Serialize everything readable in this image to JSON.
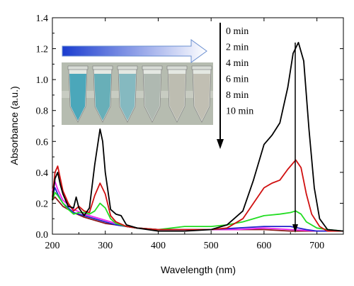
{
  "chart_data": {
    "type": "line",
    "xlabel": "Wavelength (nm)",
    "ylabel": "Absorbance (a.u.)",
    "xlim": [
      200,
      750
    ],
    "ylim": [
      0,
      1.4
    ],
    "xticks": [
      "200",
      "300",
      "400",
      "500",
      "600",
      "700"
    ],
    "yticks": [
      "0.0",
      "0.2",
      "0.4",
      "0.6",
      "0.8",
      "1.0",
      "1.2",
      "1.4"
    ],
    "time_labels": [
      "0 min",
      "2 min",
      "4 min",
      "6 min",
      "8 min",
      "10 min"
    ],
    "grid": false,
    "series": [
      {
        "label": "0 min",
        "color": "#000000",
        "points": [
          [
            200,
            0.22
          ],
          [
            205,
            0.36
          ],
          [
            210,
            0.4
          ],
          [
            215,
            0.32
          ],
          [
            220,
            0.26
          ],
          [
            230,
            0.18
          ],
          [
            240,
            0.17
          ],
          [
            245,
            0.24
          ],
          [
            250,
            0.17
          ],
          [
            260,
            0.12
          ],
          [
            270,
            0.17
          ],
          [
            280,
            0.45
          ],
          [
            290,
            0.68
          ],
          [
            295,
            0.6
          ],
          [
            300,
            0.4
          ],
          [
            310,
            0.16
          ],
          [
            320,
            0.13
          ],
          [
            330,
            0.12
          ],
          [
            340,
            0.06
          ],
          [
            360,
            0.04
          ],
          [
            400,
            0.02
          ],
          [
            450,
            0.02
          ],
          [
            500,
            0.03
          ],
          [
            530,
            0.06
          ],
          [
            560,
            0.15
          ],
          [
            580,
            0.35
          ],
          [
            600,
            0.58
          ],
          [
            615,
            0.64
          ],
          [
            630,
            0.72
          ],
          [
            645,
            0.95
          ],
          [
            655,
            1.17
          ],
          [
            665,
            1.24
          ],
          [
            675,
            1.12
          ],
          [
            685,
            0.68
          ],
          [
            695,
            0.3
          ],
          [
            705,
            0.1
          ],
          [
            720,
            0.03
          ],
          [
            750,
            0.02
          ]
        ]
      },
      {
        "label": "2 min",
        "color": "#d01010",
        "points": [
          [
            200,
            0.24
          ],
          [
            205,
            0.4
          ],
          [
            210,
            0.44
          ],
          [
            215,
            0.36
          ],
          [
            220,
            0.28
          ],
          [
            230,
            0.2
          ],
          [
            240,
            0.15
          ],
          [
            250,
            0.18
          ],
          [
            260,
            0.15
          ],
          [
            270,
            0.14
          ],
          [
            280,
            0.25
          ],
          [
            290,
            0.33
          ],
          [
            300,
            0.26
          ],
          [
            310,
            0.12
          ],
          [
            320,
            0.08
          ],
          [
            340,
            0.05
          ],
          [
            360,
            0.04
          ],
          [
            400,
            0.03
          ],
          [
            450,
            0.03
          ],
          [
            500,
            0.03
          ],
          [
            530,
            0.04
          ],
          [
            560,
            0.1
          ],
          [
            580,
            0.2
          ],
          [
            600,
            0.3
          ],
          [
            615,
            0.33
          ],
          [
            630,
            0.35
          ],
          [
            645,
            0.42
          ],
          [
            660,
            0.48
          ],
          [
            670,
            0.43
          ],
          [
            680,
            0.26
          ],
          [
            690,
            0.13
          ],
          [
            705,
            0.05
          ],
          [
            720,
            0.02
          ],
          [
            750,
            0.02
          ]
        ]
      },
      {
        "label": "4 min",
        "color": "#22dd22",
        "points": [
          [
            200,
            0.22
          ],
          [
            205,
            0.27
          ],
          [
            210,
            0.25
          ],
          [
            220,
            0.2
          ],
          [
            230,
            0.16
          ],
          [
            240,
            0.13
          ],
          [
            250,
            0.14
          ],
          [
            260,
            0.14
          ],
          [
            270,
            0.13
          ],
          [
            280,
            0.15
          ],
          [
            290,
            0.2
          ],
          [
            300,
            0.17
          ],
          [
            310,
            0.1
          ],
          [
            320,
            0.07
          ],
          [
            340,
            0.05
          ],
          [
            360,
            0.04
          ],
          [
            400,
            0.03
          ],
          [
            450,
            0.05
          ],
          [
            500,
            0.05
          ],
          [
            530,
            0.06
          ],
          [
            560,
            0.08
          ],
          [
            580,
            0.1
          ],
          [
            600,
            0.12
          ],
          [
            630,
            0.13
          ],
          [
            650,
            0.14
          ],
          [
            660,
            0.15
          ],
          [
            670,
            0.13
          ],
          [
            680,
            0.08
          ],
          [
            700,
            0.04
          ],
          [
            720,
            0.03
          ],
          [
            750,
            0.02
          ]
        ]
      },
      {
        "label": "6 min",
        "color": "#2222cc",
        "points": [
          [
            200,
            0.25
          ],
          [
            205,
            0.3
          ],
          [
            210,
            0.26
          ],
          [
            220,
            0.2
          ],
          [
            240,
            0.14
          ],
          [
            260,
            0.12
          ],
          [
            280,
            0.1
          ],
          [
            300,
            0.08
          ],
          [
            320,
            0.06
          ],
          [
            340,
            0.05
          ],
          [
            360,
            0.04
          ],
          [
            400,
            0.03
          ],
          [
            450,
            0.03
          ],
          [
            500,
            0.03
          ],
          [
            550,
            0.04
          ],
          [
            600,
            0.05
          ],
          [
            650,
            0.05
          ],
          [
            680,
            0.03
          ],
          [
            700,
            0.02
          ],
          [
            750,
            0.02
          ]
        ]
      },
      {
        "label": "8 min",
        "color": "#ee22ee",
        "points": [
          [
            200,
            0.28
          ],
          [
            205,
            0.34
          ],
          [
            210,
            0.29
          ],
          [
            220,
            0.22
          ],
          [
            240,
            0.16
          ],
          [
            260,
            0.13
          ],
          [
            280,
            0.11
          ],
          [
            300,
            0.09
          ],
          [
            320,
            0.07
          ],
          [
            340,
            0.05
          ],
          [
            360,
            0.04
          ],
          [
            400,
            0.03
          ],
          [
            450,
            0.03
          ],
          [
            500,
            0.03
          ],
          [
            550,
            0.03
          ],
          [
            600,
            0.04
          ],
          [
            650,
            0.03
          ],
          [
            700,
            0.02
          ],
          [
            750,
            0.02
          ]
        ]
      },
      {
        "label": "10 min",
        "color": "#8b1a1a",
        "points": [
          [
            200,
            0.22
          ],
          [
            205,
            0.24
          ],
          [
            210,
            0.22
          ],
          [
            220,
            0.18
          ],
          [
            240,
            0.14
          ],
          [
            260,
            0.11
          ],
          [
            280,
            0.09
          ],
          [
            300,
            0.07
          ],
          [
            320,
            0.06
          ],
          [
            340,
            0.05
          ],
          [
            360,
            0.04
          ],
          [
            400,
            0.03
          ],
          [
            450,
            0.03
          ],
          [
            500,
            0.03
          ],
          [
            550,
            0.03
          ],
          [
            600,
            0.03
          ],
          [
            650,
            0.02
          ],
          [
            700,
            0.02
          ],
          [
            750,
            0.02
          ]
        ]
      }
    ]
  },
  "inset_photo": {
    "arrow_colors": [
      "#1a3ccf",
      "#ffffff"
    ],
    "tubes": [
      {
        "liquid": "#3aa0b6"
      },
      {
        "liquid": "#5aa8b4"
      },
      {
        "liquid": "#7ab4bc"
      },
      {
        "liquid": "#a8b4ac"
      },
      {
        "liquid": "#b8b8ac"
      },
      {
        "liquid": "#bcbaae"
      }
    ]
  }
}
